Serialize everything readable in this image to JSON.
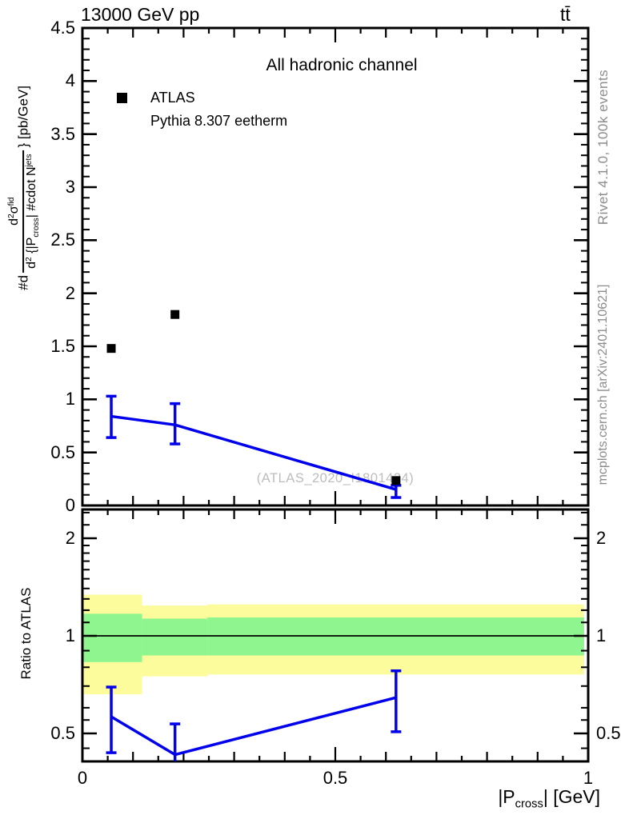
{
  "header": {
    "title": "13000 GeV pp",
    "process": "tt̄"
  },
  "plot": {
    "channel_label": "All hadronic channel",
    "watermark": "(ATLAS_2020_I1801434)",
    "legend": [
      {
        "label": "ATLAS",
        "marker": "square",
        "color": "#000000"
      },
      {
        "label": "Pythia 8.307 eetherm",
        "marker": "line",
        "color": "#0000ee"
      }
    ],
    "ylabel": {
      "prefix": "#d",
      "num": [
        [
          "t",
          "d"
        ],
        [
          "sup",
          "2"
        ],
        [
          "t",
          "σ"
        ],
        [
          "sup",
          "fid"
        ]
      ],
      "den": [
        [
          "t",
          "d"
        ],
        [
          "sup",
          "2"
        ],
        [
          "t",
          " {|P"
        ],
        [
          "sub",
          "cross"
        ],
        [
          "t",
          "| #cdot N"
        ],
        [
          "sup",
          "jets"
        ]
      ],
      "suffix": "} [pb/GeV]"
    }
  },
  "ratio_panel": {
    "ylabel": "Ratio to ATLAS"
  },
  "xaxis": {
    "title_parts": [
      [
        "t",
        "|P"
      ],
      [
        "sub",
        "cross"
      ],
      [
        "t",
        "| [GeV]"
      ]
    ],
    "title_text": "|P_cross| [GeV]"
  },
  "sidebar": {
    "top": "Rivet 4.1.0,  100k events",
    "bottom": "mcplots.cern.ch [arXiv:2401.10621]"
  },
  "colors": {
    "pythia_blue": "#0000ee",
    "band_yellow": "#fcfc9c",
    "band_green": "#8ff58f",
    "frame": "#000000",
    "gray_text": "#8c8c8c",
    "watermark": "#bdbdbd"
  },
  "chart_data": [
    {
      "type": "line",
      "title": "All hadronic channel",
      "xlabel": "|P_cross| [GeV]",
      "ylabel": "#d d^2sigma^fid / d^2{|P_cross| #cdot N^jets} [pb/GeV]",
      "xlim": [
        0,
        1
      ],
      "ylim": [
        0,
        4.5
      ],
      "x_ticks": {
        "values": [
          0,
          0.5,
          1
        ],
        "labels": [
          "0",
          "0.5",
          "1"
        ]
      },
      "y_ticks": {
        "values": [
          0,
          0.5,
          1,
          1.5,
          2,
          2.5,
          3,
          3.5,
          4,
          4.5
        ],
        "labels": [
          "0",
          "0.5",
          "1",
          "1.5",
          "2",
          "2.5",
          "3",
          "3.5",
          "4",
          "4.5"
        ]
      },
      "series": [
        {
          "name": "ATLAS",
          "type": "scatter",
          "marker": "square",
          "color": "#000000",
          "x": [
            0.057,
            0.183,
            0.62
          ],
          "y": [
            1.48,
            1.8,
            0.235
          ]
        },
        {
          "name": "Pythia 8.307 eetherm",
          "type": "line",
          "color": "#0000ee",
          "x": [
            0.057,
            0.183,
            0.62
          ],
          "y": [
            0.84,
            0.76,
            0.15
          ],
          "yerr_lo": [
            0.64,
            0.58,
            0.075
          ],
          "yerr_hi": [
            1.03,
            0.96,
            0.19
          ]
        }
      ]
    },
    {
      "type": "line",
      "ylabel": "Ratio to ATLAS",
      "yscale": "log",
      "xlim": [
        0,
        1
      ],
      "ylim": [
        0.41,
        2.455
      ],
      "ref_line": 1,
      "y_ticks": {
        "values": [
          0.5,
          1,
          2
        ],
        "labels": [
          "0.5",
          "1",
          "2"
        ],
        "minor": [
          0.45,
          0.55,
          0.6,
          0.7,
          0.8,
          0.9,
          1.1,
          1.2,
          1.3,
          1.4,
          1.5,
          1.6,
          1.7,
          1.8,
          1.9,
          2.2,
          2.4
        ]
      },
      "bands": [
        {
          "x0": 0,
          "x1": 0.118,
          "yellow": [
            0.66,
            1.34
          ],
          "green": [
            0.83,
            1.17
          ]
        },
        {
          "x0": 0.118,
          "x1": 0.247,
          "yellow": [
            0.75,
            1.24
          ],
          "green": [
            0.87,
            1.13
          ]
        },
        {
          "x0": 0.247,
          "x1": 0.992,
          "yellow": [
            0.76,
            1.25
          ],
          "green": [
            0.87,
            1.14
          ]
        }
      ],
      "series": [
        {
          "name": "Pythia 8.307 eetherm / ATLAS",
          "type": "line",
          "color": "#0000ee",
          "x": [
            0.057,
            0.183,
            0.62
          ],
          "y": [
            0.563,
            0.43,
            0.645
          ],
          "yerr_lo": [
            0.436,
            0.39,
            0.506
          ],
          "yerr_hi": [
            0.695,
            0.535,
            0.78
          ]
        }
      ]
    }
  ]
}
